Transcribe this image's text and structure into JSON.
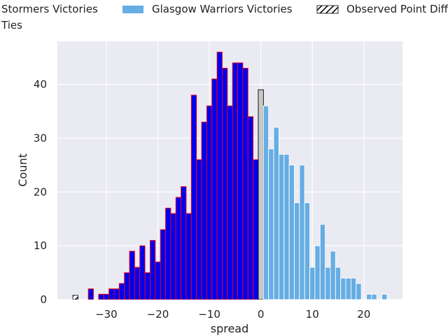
{
  "chart_data": {
    "type": "bar",
    "xlabel": "spread",
    "ylabel": "Count",
    "xlim": [
      -39.5,
      27.5
    ],
    "ylim": [
      0,
      48
    ],
    "grid": true,
    "legend_placement": "top-left, outside above plot",
    "x_ticks": [
      -30,
      -20,
      -10,
      0,
      10,
      20
    ],
    "x_tick_labels": [
      "−30",
      "−20",
      "−10",
      "0",
      "10",
      "20"
    ],
    "y_ticks": [
      0,
      10,
      20,
      30,
      40
    ],
    "y_tick_labels": [
      "0",
      "10",
      "20",
      "30",
      "40"
    ],
    "series": [
      {
        "name": "Stormers Victories",
        "face": "#0000ee",
        "edge": "#ff0000",
        "x": [
          -33,
          -32,
          -31,
          -30,
          -29,
          -28,
          -27,
          -26,
          -25,
          -24,
          -23,
          -22,
          -21,
          -20,
          -19,
          -18,
          -17,
          -16,
          -15,
          -14,
          -13,
          -12,
          -11,
          -10,
          -9,
          -8,
          -7,
          -6,
          -5,
          -4,
          -3,
          -2,
          -1
        ],
        "values": [
          2,
          0,
          1,
          1,
          2,
          2,
          3,
          5,
          9,
          6,
          10,
          5,
          11,
          7,
          13,
          17,
          16,
          19,
          21,
          16,
          38,
          26,
          33,
          36,
          41,
          46,
          43,
          36,
          44,
          44,
          43,
          34,
          26
        ]
      },
      {
        "name": "Ties",
        "face": "#c8c8c8",
        "edge": "#000000",
        "x": [
          0
        ],
        "values": [
          39
        ]
      },
      {
        "name": "Glasgow Warriors Victories",
        "face": "#66ade3",
        "edge": "#ffffff",
        "x": [
          1,
          2,
          3,
          4,
          5,
          6,
          7,
          8,
          9,
          10,
          11,
          12,
          13,
          14,
          15,
          16,
          17,
          18,
          19,
          20,
          21,
          22,
          23,
          24
        ],
        "values": [
          36,
          28,
          32,
          27,
          27,
          25,
          18,
          25,
          18,
          6,
          10,
          14,
          6,
          9,
          6,
          4,
          4,
          4,
          3,
          0,
          1,
          1,
          0,
          1
        ]
      },
      {
        "name": "Observed Point Difference",
        "x": [
          -36
        ],
        "marker": "hatched"
      }
    ]
  },
  "legend": {
    "stormers": "Stormers Victories",
    "glasgow": "Glasgow Warriors Victories",
    "observed": "Observed Point Difference",
    "ties": "Ties"
  },
  "colors": {
    "plot_background": "#eaeaf2",
    "grid": "#ffffff",
    "stormers_face": "#0000ee",
    "stormers_edge": "#ff0000",
    "ties_face": "#c8c8c8",
    "glasgow_face": "#66ade3"
  }
}
